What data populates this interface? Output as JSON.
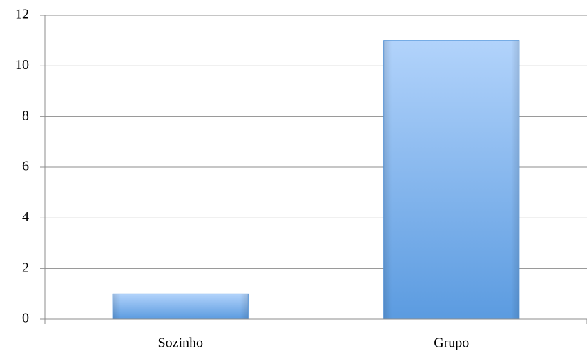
{
  "chart_data": {
    "type": "bar",
    "categories": [
      "Sozinho",
      "Grupo"
    ],
    "values": [
      1,
      11
    ],
    "color": "#5b9be0",
    "ylim": [
      0,
      12
    ],
    "yticks": [
      0,
      2,
      4,
      6,
      8,
      10,
      12
    ],
    "grid": true
  }
}
